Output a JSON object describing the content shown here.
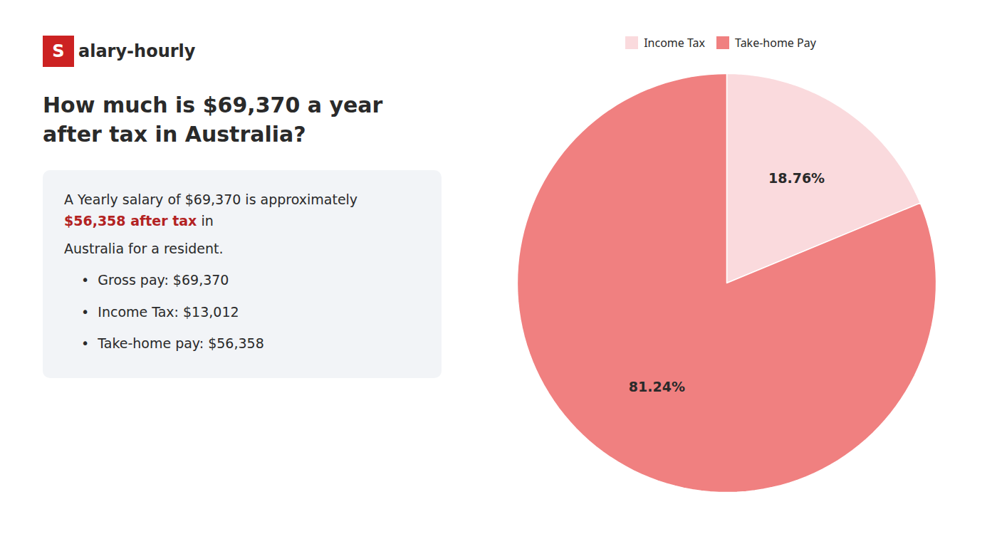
{
  "chart_data": {
    "type": "pie",
    "title": "How much is $69,370 a year after tax in Australia?",
    "categories": [
      "Income Tax",
      "Take-home Pay"
    ],
    "values": [
      18.76,
      81.24
    ],
    "value_labels": [
      "18.76%",
      "81.24%"
    ],
    "colors": [
      "#fadadd",
      "#f08080"
    ],
    "data_labels": true,
    "legend": "top",
    "annotations": [
      [
        {
          "text": "S",
          "color": "#cc2222"
        },
        {
          "text": "alary-hourly"
        }
      ],
      [
        {
          "text": "A Yearly salary of $69,370 is approximately "
        },
        {
          "text": "$56,358 after tax",
          "color": "#b32222"
        },
        {
          "text": " in"
        }
      ],
      [
        {
          "text": "Australia for a resident."
        }
      ],
      [
        {
          "text": "•  Gross pay: $69,370"
        }
      ],
      [
        {
          "text": "•  Income Tax: $13,012"
        }
      ],
      [
        {
          "text": "•  Take-home pay: $56,358"
        }
      ]
    ]
  }
}
